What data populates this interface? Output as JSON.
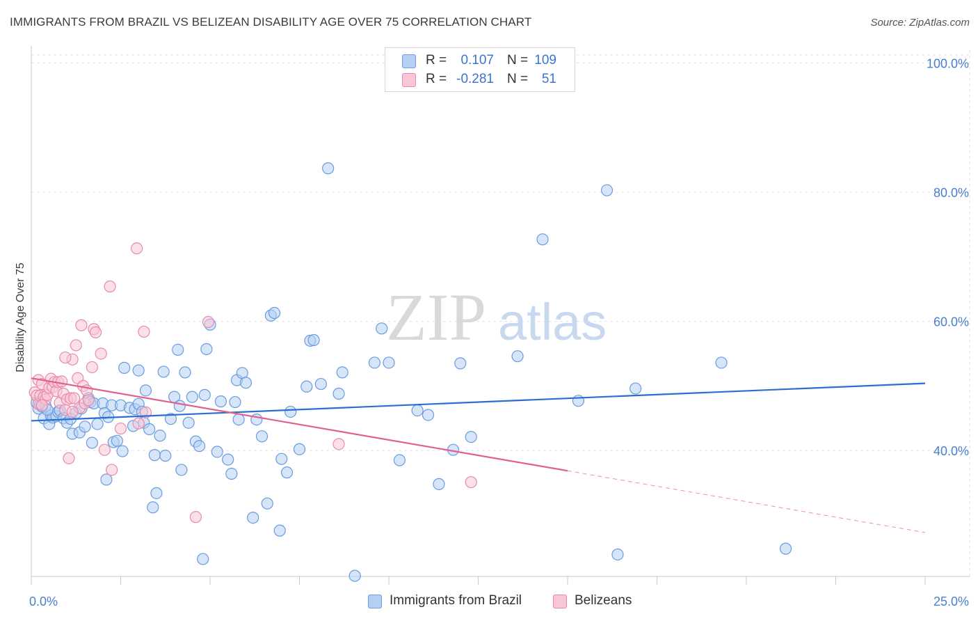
{
  "title": "IMMIGRANTS FROM BRAZIL VS BELIZEAN DISABILITY AGE OVER 75 CORRELATION CHART",
  "source": "Source: ZipAtlas.com",
  "watermark": {
    "zip": "ZIP",
    "atlas": "atlas"
  },
  "colors": {
    "blue": "#6a9be0",
    "blue_line": "#2a6fd0",
    "blue_fill": "#b5cff3",
    "pink": "#e88aaa",
    "pink_line": "#e0608e",
    "pink_fill": "#f8c6d6",
    "accent_text": "#4a7fd0"
  },
  "legend": {
    "rows": [
      {
        "r_label": "R =",
        "r_value": "0.107",
        "n_label": "N =",
        "n_value": "109"
      },
      {
        "r_label": "R =",
        "r_value": "-0.281",
        "n_label": "N =",
        "n_value": "51"
      }
    ]
  },
  "bottom_legend": {
    "blue": "Immigrants from Brazil",
    "pink": "Belizeans"
  },
  "chart_data": {
    "type": "scatter",
    "title": "IMMIGRANTS FROM BRAZIL VS BELIZEAN DISABILITY AGE OVER 75 CORRELATION CHART",
    "xlabel": "",
    "ylabel": "Disability Age Over 75",
    "xlim": [
      0,
      25
    ],
    "ylim": [
      20.5,
      102
    ],
    "x_tick_labels": [
      "0.0%",
      "25.0%"
    ],
    "y_ticks": [
      40,
      60,
      80,
      100
    ],
    "y_tick_labels": [
      "40.0%",
      "60.0%",
      "80.0%",
      "100.0%"
    ],
    "grid": true,
    "series": [
      {
        "name": "Immigrants from Brazil",
        "color": "blue",
        "R": 0.107,
        "N": 109,
        "trend": {
          "x": [
            0,
            25
          ],
          "y": [
            44.6,
            50.4
          ],
          "dashed_from": null
        },
        "points": [
          [
            0.15,
            47.4
          ],
          [
            0.2,
            46.5
          ],
          [
            0.25,
            47.2
          ],
          [
            0.3,
            46.8
          ],
          [
            0.35,
            45.0
          ],
          [
            0.4,
            46.9
          ],
          [
            0.5,
            44.1
          ],
          [
            0.55,
            45.4
          ],
          [
            0.6,
            45.1
          ],
          [
            0.7,
            45.3
          ],
          [
            0.75,
            46.0
          ],
          [
            0.8,
            46.2
          ],
          [
            0.9,
            45.0
          ],
          [
            1.0,
            44.3
          ],
          [
            1.1,
            44.9
          ],
          [
            1.15,
            42.6
          ],
          [
            1.25,
            45.8
          ],
          [
            1.35,
            42.8
          ],
          [
            1.4,
            46.5
          ],
          [
            1.5,
            43.7
          ],
          [
            1.6,
            48.1
          ],
          [
            1.65,
            47.5
          ],
          [
            1.75,
            47.3
          ],
          [
            1.7,
            41.2
          ],
          [
            1.85,
            44.1
          ],
          [
            2.0,
            47.3
          ],
          [
            2.05,
            45.8
          ],
          [
            2.1,
            35.5
          ],
          [
            2.15,
            45.2
          ],
          [
            2.25,
            47.0
          ],
          [
            2.3,
            41.3
          ],
          [
            2.4,
            41.5
          ],
          [
            2.5,
            47.0
          ],
          [
            2.55,
            39.9
          ],
          [
            2.6,
            52.8
          ],
          [
            2.75,
            46.6
          ],
          [
            2.85,
            43.8
          ],
          [
            2.9,
            46.4
          ],
          [
            3.0,
            47.2
          ],
          [
            3.0,
            52.4
          ],
          [
            3.1,
            46.0
          ],
          [
            3.15,
            44.3
          ],
          [
            3.2,
            49.3
          ],
          [
            3.3,
            43.3
          ],
          [
            3.4,
            31.2
          ],
          [
            3.45,
            39.3
          ],
          [
            3.5,
            33.4
          ],
          [
            3.6,
            42.3
          ],
          [
            3.7,
            52.2
          ],
          [
            3.75,
            39.2
          ],
          [
            3.9,
            44.9
          ],
          [
            4.0,
            48.3
          ],
          [
            4.1,
            55.6
          ],
          [
            4.15,
            46.9
          ],
          [
            4.2,
            37.0
          ],
          [
            4.3,
            52.1
          ],
          [
            4.4,
            44.3
          ],
          [
            4.5,
            48.3
          ],
          [
            4.6,
            41.4
          ],
          [
            4.7,
            40.7
          ],
          [
            4.8,
            23.2
          ],
          [
            4.85,
            48.6
          ],
          [
            4.9,
            55.7
          ],
          [
            5.0,
            59.5
          ],
          [
            5.2,
            39.8
          ],
          [
            5.3,
            47.6
          ],
          [
            5.5,
            38.6
          ],
          [
            5.6,
            36.4
          ],
          [
            5.7,
            47.5
          ],
          [
            5.75,
            50.9
          ],
          [
            5.8,
            44.8
          ],
          [
            5.9,
            52.0
          ],
          [
            6.0,
            50.5
          ],
          [
            6.2,
            29.6
          ],
          [
            6.3,
            44.8
          ],
          [
            6.45,
            42.2
          ],
          [
            6.6,
            31.8
          ],
          [
            6.7,
            60.9
          ],
          [
            6.8,
            61.3
          ],
          [
            6.95,
            27.6
          ],
          [
            7.0,
            38.7
          ],
          [
            7.15,
            36.6
          ],
          [
            7.25,
            46.0
          ],
          [
            7.5,
            40.2
          ],
          [
            7.7,
            49.9
          ],
          [
            7.8,
            57.0
          ],
          [
            7.9,
            57.1
          ],
          [
            8.1,
            50.3
          ],
          [
            8.3,
            83.7
          ],
          [
            8.6,
            48.8
          ],
          [
            8.7,
            52.1
          ],
          [
            9.05,
            20.6
          ],
          [
            9.6,
            53.6
          ],
          [
            9.8,
            58.9
          ],
          [
            10.0,
            53.6
          ],
          [
            10.3,
            38.5
          ],
          [
            10.8,
            46.2
          ],
          [
            11.1,
            45.5
          ],
          [
            11.4,
            34.8
          ],
          [
            11.8,
            40.1
          ],
          [
            12.0,
            53.5
          ],
          [
            12.3,
            42.1
          ],
          [
            13.6,
            54.6
          ],
          [
            14.3,
            72.7
          ],
          [
            15.3,
            47.7
          ],
          [
            16.1,
            80.3
          ],
          [
            16.4,
            23.9
          ],
          [
            16.9,
            49.6
          ],
          [
            19.3,
            53.6
          ],
          [
            21.1,
            24.8
          ],
          [
            0.45,
            46.3
          ]
        ]
      },
      {
        "name": "Belizeans",
        "color": "pink",
        "R": -0.281,
        "N": 51,
        "trend": {
          "x": [
            0,
            25
          ],
          "y": [
            51.2,
            27.3
          ],
          "dashed_from": 15.0
        },
        "points": [
          [
            0.1,
            49.0
          ],
          [
            0.15,
            48.5
          ],
          [
            0.2,
            47.2
          ],
          [
            0.2,
            50.9
          ],
          [
            0.25,
            48.5
          ],
          [
            0.3,
            50.3
          ],
          [
            0.35,
            48.3
          ],
          [
            0.4,
            47.9
          ],
          [
            0.45,
            48.6
          ],
          [
            0.5,
            49.7
          ],
          [
            0.55,
            51.1
          ],
          [
            0.6,
            49.8
          ],
          [
            0.65,
            50.6
          ],
          [
            0.7,
            49.2
          ],
          [
            0.75,
            50.6
          ],
          [
            0.8,
            47.4
          ],
          [
            0.85,
            50.7
          ],
          [
            0.9,
            48.8
          ],
          [
            0.95,
            46.3
          ],
          [
            1.0,
            47.9
          ],
          [
            1.05,
            38.8
          ],
          [
            1.1,
            48.1
          ],
          [
            1.15,
            54.1
          ],
          [
            1.2,
            48.1
          ],
          [
            1.25,
            56.3
          ],
          [
            1.3,
            51.2
          ],
          [
            1.35,
            46.6
          ],
          [
            1.4,
            59.4
          ],
          [
            1.45,
            50.0
          ],
          [
            1.5,
            47.3
          ],
          [
            1.55,
            49.3
          ],
          [
            1.6,
            47.8
          ],
          [
            1.7,
            52.9
          ],
          [
            1.75,
            58.8
          ],
          [
            1.8,
            58.3
          ],
          [
            1.95,
            55.0
          ],
          [
            2.05,
            40.1
          ],
          [
            2.2,
            65.4
          ],
          [
            2.25,
            37.0
          ],
          [
            2.5,
            43.4
          ],
          [
            2.95,
            71.3
          ],
          [
            3.0,
            44.2
          ],
          [
            3.15,
            58.4
          ],
          [
            3.2,
            45.9
          ],
          [
            4.6,
            29.7
          ],
          [
            4.95,
            59.9
          ],
          [
            8.6,
            41.0
          ],
          [
            12.3,
            35.1
          ],
          [
            0.3,
            47.0
          ],
          [
            0.95,
            54.4
          ],
          [
            1.15,
            46.0
          ]
        ]
      }
    ]
  }
}
